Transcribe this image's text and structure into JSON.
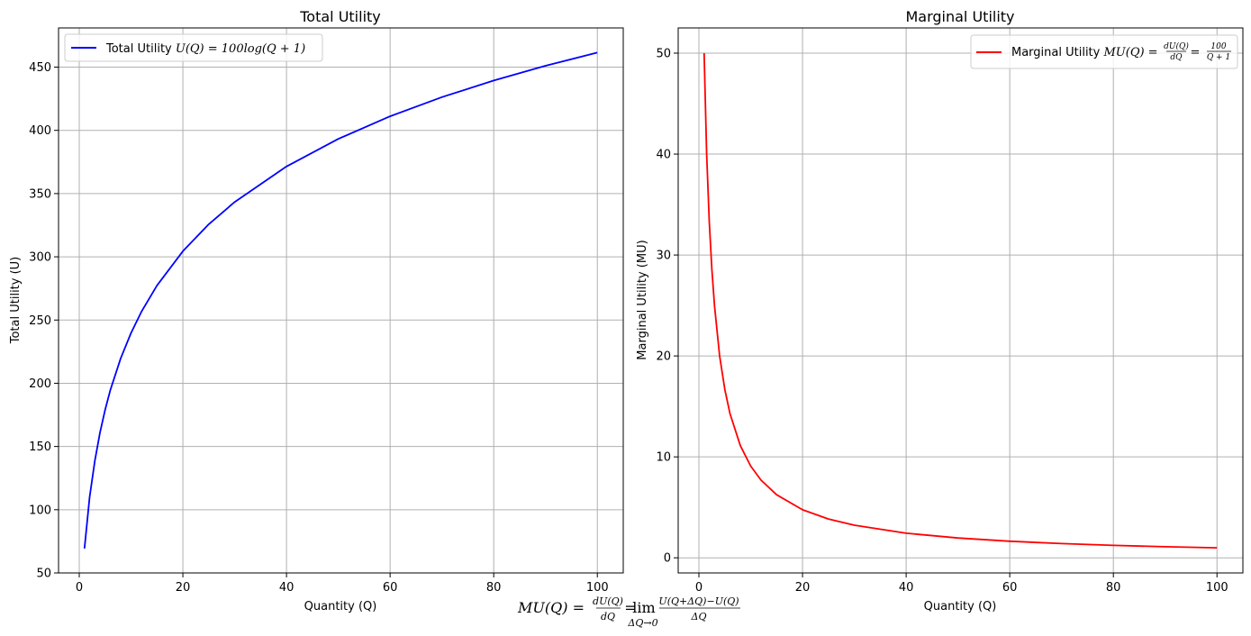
{
  "chart_data": [
    {
      "type": "line",
      "title": "Total Utility",
      "xlabel": "Quantity (Q)",
      "ylabel": "Total Utility (U)",
      "xlim": [
        -4,
        105
      ],
      "ylim": [
        50,
        481
      ],
      "xticks": [
        0,
        20,
        40,
        60,
        80,
        100
      ],
      "yticks": [
        50,
        100,
        150,
        200,
        250,
        300,
        350,
        400,
        450
      ],
      "xtick_labels": [
        "0",
        "20",
        "40",
        "60",
        "80",
        "100"
      ],
      "ytick_labels": [
        "50",
        "100",
        "150",
        "200",
        "250",
        "300",
        "350",
        "400",
        "450"
      ],
      "grid": true,
      "legend_position": "upper-left",
      "series": [
        {
          "name": "Total Utility U(Q) = 100log(Q + 1)",
          "legend_plain": "Total Utility ",
          "legend_math": "U(Q) = 100log(Q + 1)",
          "color": "#0000ff",
          "x": [
            1,
            2,
            3,
            4,
            5,
            6,
            8,
            10,
            12,
            15,
            20,
            25,
            30,
            40,
            50,
            60,
            70,
            80,
            90,
            100
          ],
          "y": [
            69.3,
            109.9,
            138.6,
            160.9,
            179.2,
            194.6,
            219.7,
            239.8,
            256.5,
            277.3,
            304.5,
            325.8,
            343.4,
            371.4,
            393.2,
            411.1,
            426.3,
            439.4,
            451.1,
            461.5
          ]
        }
      ]
    },
    {
      "type": "line",
      "title": "Marginal Utility",
      "xlabel": "Quantity (Q)",
      "ylabel": "Marginal Utility (MU)",
      "xlim": [
        -4,
        105
      ],
      "ylim": [
        -1.5,
        52.5
      ],
      "xticks": [
        0,
        20,
        40,
        60,
        80,
        100
      ],
      "yticks": [
        0,
        10,
        20,
        30,
        40,
        50
      ],
      "xtick_labels": [
        "0",
        "20",
        "40",
        "60",
        "80",
        "100"
      ],
      "ytick_labels": [
        "0",
        "10",
        "20",
        "30",
        "40",
        "50"
      ],
      "grid": true,
      "legend_position": "upper-right",
      "series": [
        {
          "name": "Marginal Utility MU(Q) = dU(Q)/dQ = 100/(Q+1)",
          "legend_plain": "Marginal Utility ",
          "legend_math_left": "MU(Q) =",
          "legend_frac1_num": "dU(Q)",
          "legend_frac1_den": "dQ",
          "legend_frac2_num": "100",
          "legend_frac2_den": "Q + 1",
          "color": "#ff0000",
          "x": [
            1,
            1.5,
            2,
            2.5,
            3,
            4,
            5,
            6,
            8,
            10,
            12,
            15,
            20,
            25,
            30,
            40,
            50,
            60,
            70,
            80,
            90,
            100
          ],
          "y": [
            50,
            40,
            33.33,
            28.57,
            25,
            20,
            16.67,
            14.29,
            11.11,
            9.09,
            7.69,
            6.25,
            4.76,
            3.85,
            3.23,
            2.44,
            1.96,
            1.64,
            1.41,
            1.23,
            1.1,
            0.99
          ]
        }
      ]
    }
  ],
  "footer_formula": {
    "lhs": "MU(Q) =",
    "frac1_num": "dU(Q)",
    "frac1_den": "dQ",
    "lim": "lim",
    "lim_sub": "ΔQ→0",
    "frac2_num": "U(Q+ΔQ)−U(Q)",
    "frac2_den": "ΔQ"
  }
}
